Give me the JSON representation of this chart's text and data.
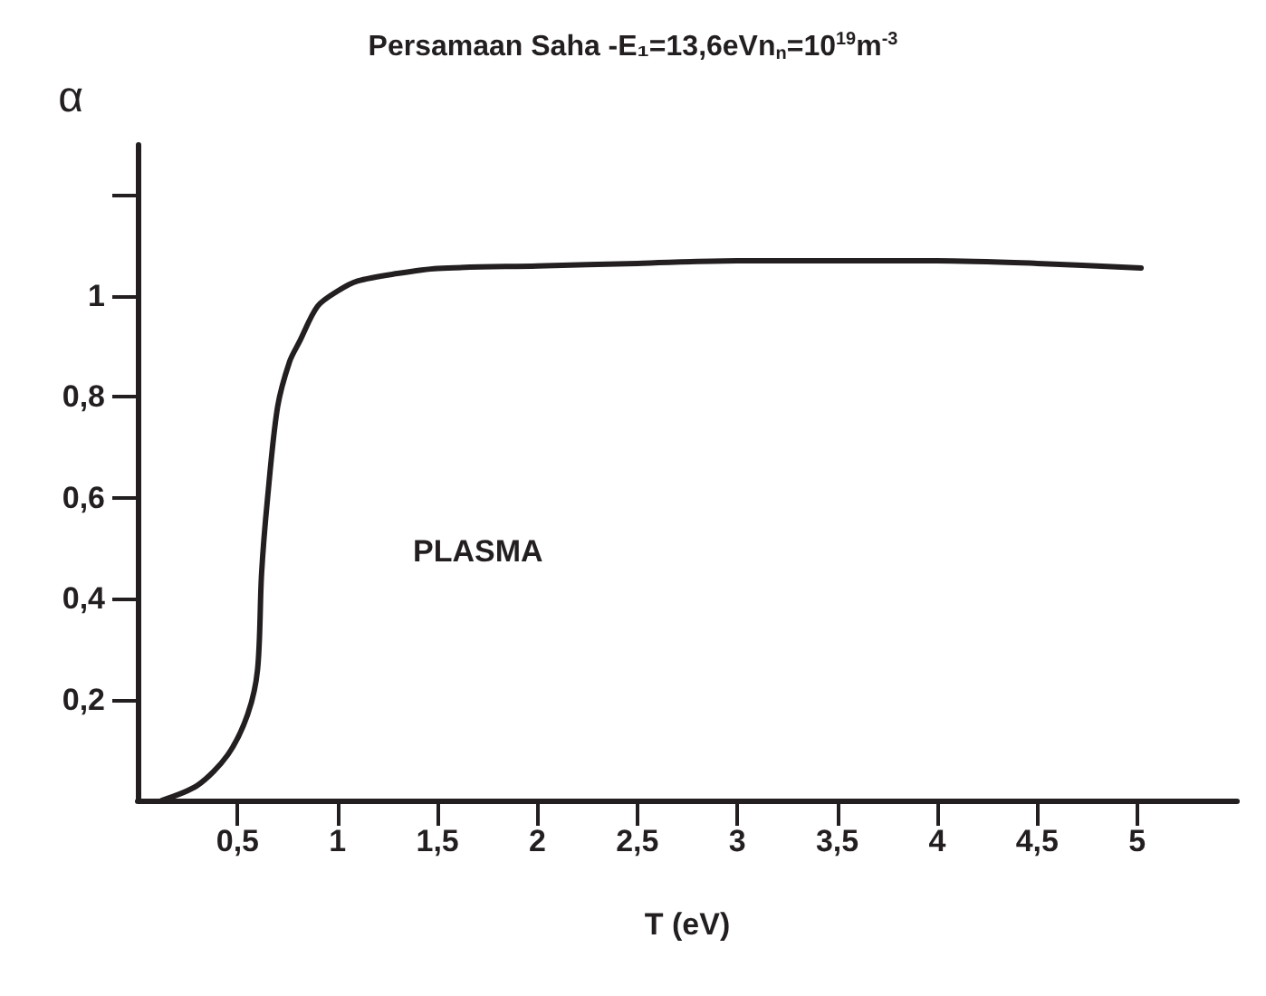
{
  "chart_data": {
    "type": "line",
    "title": "Persamaan Saha -E₁=13,6eVn$_{n}$=10$^{19}$m$^{-3}$",
    "xlabel": "T (eV)",
    "ylabel": "α",
    "x": [
      0.12,
      0.3,
      0.45,
      0.55,
      0.6,
      0.62,
      0.65,
      0.7,
      0.76,
      0.81,
      0.9,
      1.0,
      1.1,
      1.3,
      1.5,
      2,
      2.5,
      3,
      3.5,
      4,
      4.5,
      5.02
    ],
    "series": [
      {
        "color": "#231f20",
        "values": [
          0,
          0.03,
          0.09,
          0.17,
          0.26,
          0.45,
          0.6,
          0.78,
          0.87,
          0.91,
          0.98,
          1.01,
          1.03,
          1.045,
          1.055,
          1.06,
          1.065,
          1.07,
          1.07,
          1.07,
          1.065,
          1.056
        ]
      }
    ],
    "xlim": [
      0,
      5.5
    ],
    "ylim": [
      0,
      1.3
    ],
    "xticks": [
      {
        "value": 0.5,
        "label": "0,5"
      },
      1,
      {
        "value": 1.5,
        "label": "1,5"
      },
      2,
      {
        "value": 2.5,
        "label": "2,5"
      },
      3,
      {
        "value": 3.5,
        "label": "3,5"
      },
      4,
      {
        "value": 4.5,
        "label": "4,5"
      },
      5
    ],
    "yticks": [
      {
        "value": 0.2,
        "label": "0,2"
      },
      {
        "value": 0.4,
        "label": "0,4"
      },
      {
        "value": 0.6,
        "label": "0,6"
      },
      {
        "value": 0.8,
        "label": "0,8"
      },
      1,
      {
        "value": 1.2,
        "label": null
      }
    ],
    "annotations": [
      "PLASMA"
    ],
    "grid": false,
    "marker": "none",
    "line_style": "solid"
  }
}
